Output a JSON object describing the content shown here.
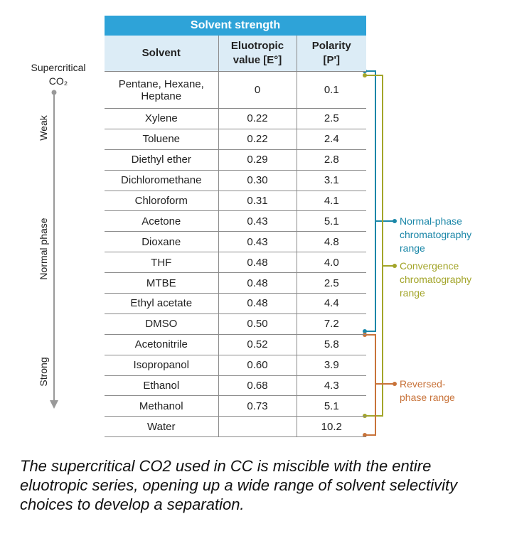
{
  "table": {
    "title": "Solvent strength",
    "columns": [
      "Solvent",
      "Eluotropic value [E°]",
      "Polarity [P']"
    ],
    "rows": [
      {
        "solvent": "Pentane, Hexane, Heptane",
        "eluotropic": "0",
        "polarity": "0.1"
      },
      {
        "solvent": "Xylene",
        "eluotropic": "0.22",
        "polarity": "2.5"
      },
      {
        "solvent": "Toluene",
        "eluotropic": "0.22",
        "polarity": "2.4"
      },
      {
        "solvent": "Diethyl ether",
        "eluotropic": "0.29",
        "polarity": "2.8"
      },
      {
        "solvent": "Dichloromethane",
        "eluotropic": "0.30",
        "polarity": "3.1"
      },
      {
        "solvent": "Chloroform",
        "eluotropic": "0.31",
        "polarity": "4.1"
      },
      {
        "solvent": "Acetone",
        "eluotropic": "0.43",
        "polarity": "5.1"
      },
      {
        "solvent": "Dioxane",
        "eluotropic": "0.43",
        "polarity": "4.8"
      },
      {
        "solvent": "THF",
        "eluotropic": "0.48",
        "polarity": "4.0"
      },
      {
        "solvent": "MTBE",
        "eluotropic": "0.48",
        "polarity": "2.5"
      },
      {
        "solvent": "Ethyl acetate",
        "eluotropic": "0.48",
        "polarity": "4.4"
      },
      {
        "solvent": "DMSO",
        "eluotropic": "0.50",
        "polarity": "7.2"
      },
      {
        "solvent": "Acetonitrile",
        "eluotropic": "0.52",
        "polarity": "5.8"
      },
      {
        "solvent": "Isopropanol",
        "eluotropic": "0.60",
        "polarity": "3.9"
      },
      {
        "solvent": "Ethanol",
        "eluotropic": "0.68",
        "polarity": "4.3"
      },
      {
        "solvent": "Methanol",
        "eluotropic": "0.73",
        "polarity": "5.1"
      },
      {
        "solvent": "Water",
        "polarity": "10.2"
      }
    ]
  },
  "side": {
    "origin": "Supercritical CO₂",
    "weak": "Weak",
    "phase": "Normal phase",
    "strong": "Strong"
  },
  "ranges": [
    "Normal-phase chromatography range",
    "Convergence chromatography range",
    "Reversed-phase range"
  ],
  "caption": "The supercritical CO2 used in CC is miscible with the entire eluotropic series, opening up a wide range of solvent selectivity choices to develop a separation."
}
